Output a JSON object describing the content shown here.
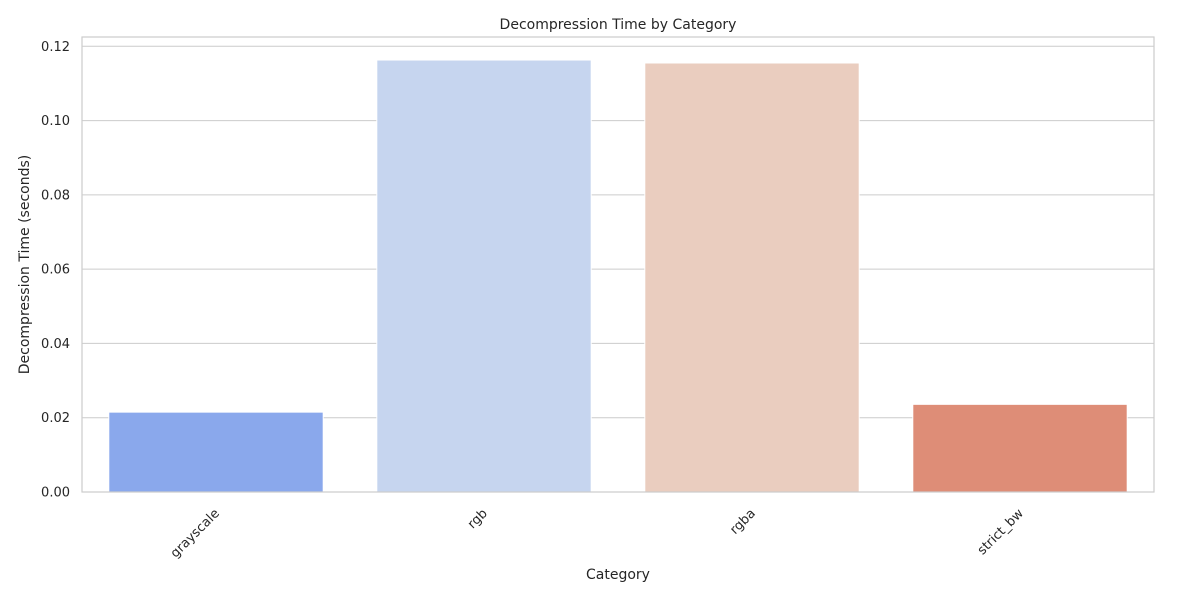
{
  "chart_data": {
    "type": "bar",
    "title": "Decompression Time by Category",
    "xlabel": "Category",
    "ylabel": "Decompression Time (seconds)",
    "categories": [
      "grayscale",
      "rgb",
      "rgba",
      "strict_bw"
    ],
    "values": [
      0.0215,
      0.1163,
      0.1155,
      0.0236
    ],
    "colors": [
      "#8aa8ec",
      "#c6d5ef",
      "#eacdbf",
      "#de8d77"
    ],
    "ylim": [
      0,
      0.1225
    ],
    "yticks": [
      0.0,
      0.02,
      0.04,
      0.06,
      0.08,
      0.1,
      0.12
    ],
    "ytick_labels": [
      "0.00",
      "0.02",
      "0.04",
      "0.06",
      "0.08",
      "0.10",
      "0.12"
    ],
    "grid": true,
    "xtick_rotation": "45deg"
  }
}
